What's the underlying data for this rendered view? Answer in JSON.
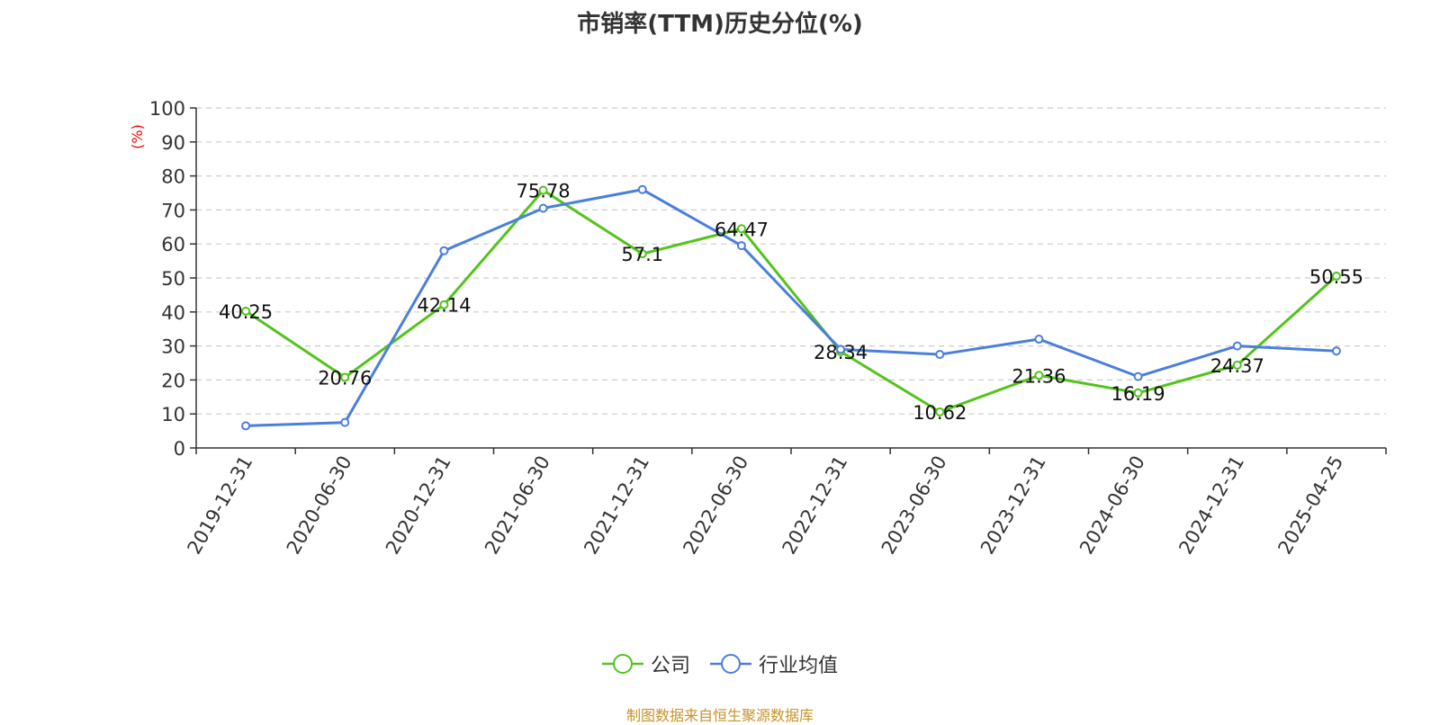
{
  "chart_data": {
    "type": "line",
    "title": "市销率(TTM)历史分位(%)",
    "ylabel": "(%)",
    "xlabel": "",
    "ylim": [
      0,
      100
    ],
    "yticks": [
      0,
      10,
      20,
      30,
      40,
      50,
      60,
      70,
      80,
      90,
      100
    ],
    "categories": [
      "2019-12-31",
      "2020-06-30",
      "2020-12-31",
      "2021-06-30",
      "2021-12-31",
      "2022-06-30",
      "2022-12-31",
      "2023-06-30",
      "2023-12-31",
      "2024-06-30",
      "2024-12-31",
      "2025-04-25"
    ],
    "grid": "horizontal dashed",
    "legend_position": "bottom",
    "series": [
      {
        "name": "公司",
        "color": "#52c41a",
        "values": [
          40.25,
          20.76,
          42.14,
          75.78,
          57.1,
          64.47,
          28.34,
          10.62,
          21.36,
          16.19,
          24.37,
          50.55
        ],
        "data_labels": [
          "40.25",
          "20.76",
          "42.14",
          "75.78",
          "57.1",
          "64.47",
          "28.34",
          "10.62",
          "21.36",
          "16.19",
          "24.37",
          "50.55"
        ]
      },
      {
        "name": "行业均值",
        "color": "#4a7fdc",
        "values": [
          6.5,
          7.5,
          58,
          70.5,
          76,
          59.5,
          29,
          27.5,
          32,
          21,
          30,
          28.5
        ]
      }
    ]
  },
  "source_note": "制图数据来自恒生聚源数据库",
  "colors": {
    "axis": "#333333",
    "grid": "#cccccc",
    "ylabel": "#ff0000",
    "source": "#c8922a"
  }
}
